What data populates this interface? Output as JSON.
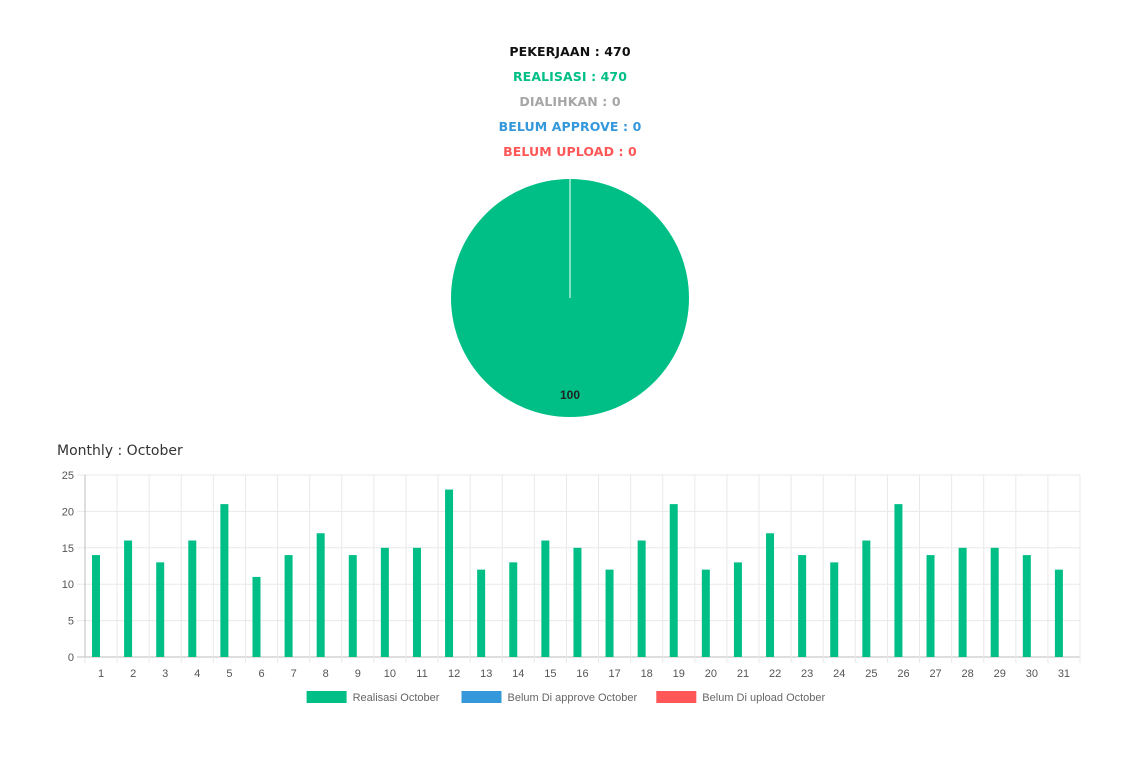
{
  "summary": {
    "pekerjaan": {
      "label": "PEKERJAAN : 470",
      "color": "#111111"
    },
    "realisasi": {
      "label": "REALISASI : 470",
      "color": "#00bf86"
    },
    "dialihkan": {
      "label": "DIALIHKAN : 0",
      "color": "#a6a6a6"
    },
    "belum_approve": {
      "label": "BELUM APPROVE : 0",
      "color": "#3498db"
    },
    "belum_upload": {
      "label": "BELUM UPLOAD : 0",
      "color": "#ff5757"
    }
  },
  "chart_data": [
    {
      "type": "pie",
      "slices": [
        {
          "value": 100,
          "color": "#00bf86",
          "label": "100"
        }
      ]
    },
    {
      "type": "bar",
      "title": "Monthly : October",
      "categories": [
        "1",
        "2",
        "3",
        "4",
        "5",
        "6",
        "7",
        "8",
        "9",
        "10",
        "11",
        "12",
        "13",
        "14",
        "15",
        "16",
        "17",
        "18",
        "19",
        "20",
        "21",
        "22",
        "23",
        "24",
        "25",
        "26",
        "27",
        "28",
        "29",
        "30",
        "31"
      ],
      "series": [
        {
          "name": "Realisasi October",
          "color": "#00bf86",
          "values": [
            14,
            16,
            13,
            16,
            21,
            11,
            14,
            17,
            14,
            15,
            15,
            23,
            12,
            13,
            16,
            15,
            12,
            16,
            21,
            12,
            13,
            17,
            14,
            13,
            16,
            21,
            14,
            15,
            15,
            14,
            12
          ]
        },
        {
          "name": "Belum Di approve October",
          "color": "#3498db",
          "values": [
            0,
            0,
            0,
            0,
            0,
            0,
            0,
            0,
            0,
            0,
            0,
            0,
            0,
            0,
            0,
            0,
            0,
            0,
            0,
            0,
            0,
            0,
            0,
            0,
            0,
            0,
            0,
            0,
            0,
            0,
            0
          ]
        },
        {
          "name": "Belum Di upload October",
          "color": "#ff5757",
          "values": [
            0,
            0,
            0,
            0,
            0,
            0,
            0,
            0,
            0,
            0,
            0,
            0,
            0,
            0,
            0,
            0,
            0,
            0,
            0,
            0,
            0,
            0,
            0,
            0,
            0,
            0,
            0,
            0,
            0,
            0,
            0
          ]
        }
      ],
      "yticks": [
        "0",
        "5",
        "10",
        "15",
        "20",
        "25"
      ],
      "ylim": [
        0,
        25
      ],
      "grid": true,
      "legend": "bottom"
    }
  ]
}
